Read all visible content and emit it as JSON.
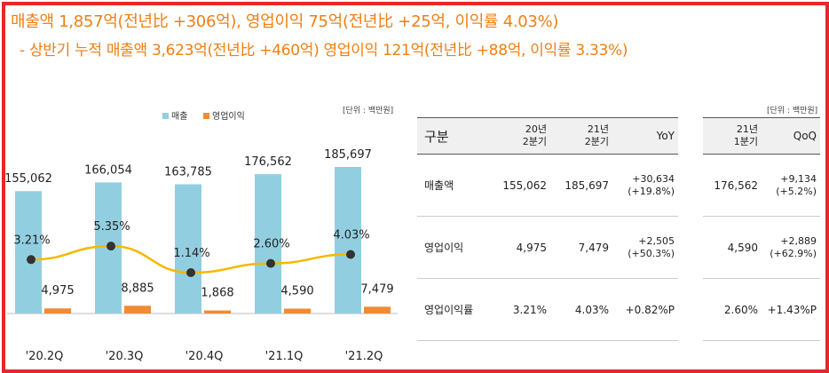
{
  "headline": {
    "line1": "매출액 1,857억(전년比 +306억), 영업이익 75억(전년比 +25억, 이익률 4.03%)",
    "line2": "- 상반기 누적 매출액  3,623억(전년比 +460억) 영업이익 121억(전년比 +88억, 이익률 3.33%)"
  },
  "chart_data": {
    "type": "bar",
    "categories": [
      "'20.2Q",
      "'20.3Q",
      "'20.4Q",
      "'21.1Q",
      "'21.2Q"
    ],
    "series": [
      {
        "name": "매출",
        "values": [
          155062,
          166054,
          163785,
          176562,
          185697
        ],
        "value_labels": [
          "155,062",
          "166,054",
          "163,785",
          "176,562",
          "185,697"
        ],
        "color": "#91cfe0"
      },
      {
        "name": "영업이익",
        "values": [
          4975,
          8885,
          1868,
          4590,
          7479
        ],
        "value_labels": [
          "4,975",
          "8,885",
          "1,868",
          "4,590",
          "7,479"
        ],
        "color": "#f08a33"
      }
    ],
    "margin_line": {
      "values": [
        3.21,
        5.35,
        1.14,
        2.6,
        4.03
      ],
      "labels": [
        "3.21%",
        "5.35%",
        "1.14%",
        "2.60%",
        "4.03%"
      ],
      "color": "#f5b800",
      "marker_color": "#333333"
    },
    "unit": "[단위 : 백만원]",
    "legend_position": "top-left"
  },
  "table_yoy": {
    "unit": "[단위 : 백만원]",
    "headers": [
      "구분",
      "20년\n2분기",
      "21년\n2분기",
      "YoY"
    ],
    "rows": [
      [
        "매출액",
        "155,062",
        "185,697",
        "+30,634\n(+19.8%)"
      ],
      [
        "영업이익",
        "4,975",
        "7,479",
        "+2,505\n(+50.3%)"
      ],
      [
        "영업이익률",
        "3.21%",
        "4.03%",
        "+0.82%P"
      ]
    ]
  },
  "table_qoq": {
    "unit": "[단위 : 백만원]",
    "headers": [
      "21년\n1분기",
      "QoQ"
    ],
    "rows": [
      [
        "176,562",
        "+9,134\n(+5.2%)"
      ],
      [
        "4,590",
        "+2,889\n(+62.9%)"
      ],
      [
        "2.60%",
        "+1.43%P"
      ]
    ]
  }
}
